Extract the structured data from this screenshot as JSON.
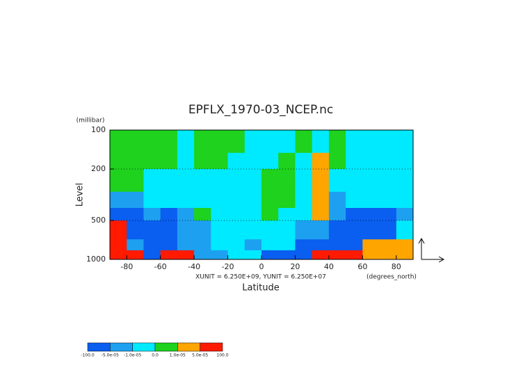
{
  "chart_data": {
    "type": "contour",
    "title": "EPFLX_1970-03_NCEP.nc",
    "y_label": "Level",
    "y_unit": "(millibar)",
    "x_label": "Latitude",
    "x_unit": "(degrees_north)",
    "annotation": "XUNIT = 6.250E+09, YUNIT = 6.250E+07",
    "xlim": [
      -90,
      90
    ],
    "xticks": [
      -80,
      -60,
      -40,
      -20,
      0,
      20,
      40,
      60,
      80
    ],
    "ylim": [
      1000,
      100
    ],
    "yticks": [
      100,
      200,
      500,
      1000
    ],
    "y_log": true,
    "lat_bins": [
      -90,
      -80,
      -70,
      -60,
      -50,
      -40,
      -30,
      -20,
      -10,
      0,
      10,
      20,
      30,
      40,
      50,
      60,
      70,
      80,
      90
    ],
    "level_bins": [
      100,
      150,
      200,
      300,
      400,
      500,
      700,
      850,
      1000
    ],
    "z": [
      [
        5e-06,
        5e-06,
        5e-06,
        5e-06,
        -5e-06,
        5e-06,
        5e-06,
        5e-06,
        -5e-06,
        -5e-06,
        -5e-06,
        5e-06,
        -5e-06,
        5e-06,
        -5e-06,
        -5e-06,
        -5e-06,
        -5e-06
      ],
      [
        5e-06,
        5e-06,
        5e-06,
        5e-06,
        -5e-06,
        5e-06,
        5e-06,
        -5e-06,
        -5e-06,
        -5e-06,
        5e-06,
        -5e-06,
        3e-05,
        5e-06,
        -5e-06,
        -5e-06,
        -5e-06,
        -5e-06
      ],
      [
        5e-06,
        5e-06,
        -5e-06,
        -5e-06,
        -5e-06,
        -5e-06,
        -5e-06,
        -5e-06,
        -5e-06,
        5e-06,
        5e-06,
        -5e-06,
        3e-05,
        -5e-06,
        -5e-06,
        -5e-06,
        -5e-06,
        -5e-06
      ],
      [
        -3e-05,
        -3e-05,
        -5e-06,
        -5e-06,
        -5e-06,
        -5e-06,
        -5e-06,
        -5e-06,
        -5e-06,
        5e-06,
        5e-06,
        -5e-06,
        3e-05,
        -3e-05,
        -5e-06,
        -5e-06,
        -5e-06,
        -5e-06
      ],
      [
        -0.0001,
        -0.0001,
        -3e-05,
        -0.0001,
        -3e-05,
        5e-06,
        -5e-06,
        -5e-06,
        -5e-06,
        5e-06,
        -5e-06,
        -5e-06,
        3e-05,
        -3e-05,
        -0.0001,
        -0.0001,
        -0.0001,
        -3e-05
      ],
      [
        0.0001,
        -0.0001,
        -0.0001,
        -0.0001,
        -3e-05,
        -3e-05,
        -5e-06,
        -5e-06,
        -5e-06,
        -5e-06,
        -5e-06,
        -3e-05,
        -3e-05,
        -0.0001,
        -0.0001,
        -0.0001,
        -0.0001,
        -5e-06
      ],
      [
        0.0001,
        -3e-05,
        -0.0001,
        -0.0001,
        -3e-05,
        -3e-05,
        -5e-06,
        -5e-06,
        -3e-05,
        -5e-06,
        -5e-06,
        -0.0001,
        -0.0001,
        -0.0001,
        -0.0001,
        3e-05,
        3e-05,
        3e-05
      ],
      [
        0.0001,
        0.0001,
        -0.0001,
        0.0001,
        0.0001,
        -3e-05,
        -3e-05,
        -5e-06,
        -5e-06,
        -0.0001,
        -0.0001,
        -0.0001,
        0.0001,
        0.0001,
        0.0001,
        3e-05,
        3e-05,
        3e-05
      ]
    ],
    "levels": [
      {
        "value": -100,
        "label": "-100.0"
      },
      {
        "value": -5e-05,
        "label": "-5.0e-05"
      },
      {
        "value": -1e-05,
        "label": "-1.0e-05"
      },
      {
        "value": 0,
        "label": "0.0"
      },
      {
        "value": 1e-05,
        "label": "1.0e-05"
      },
      {
        "value": 5e-05,
        "label": "5.0e-05"
      },
      {
        "value": 100,
        "label": "100.0"
      }
    ],
    "level_colors": [
      "#0a5ef0",
      "#1ea0f0",
      "#00eaff",
      "#1ed21e",
      "#ffa500",
      "#ff1a00"
    ]
  }
}
